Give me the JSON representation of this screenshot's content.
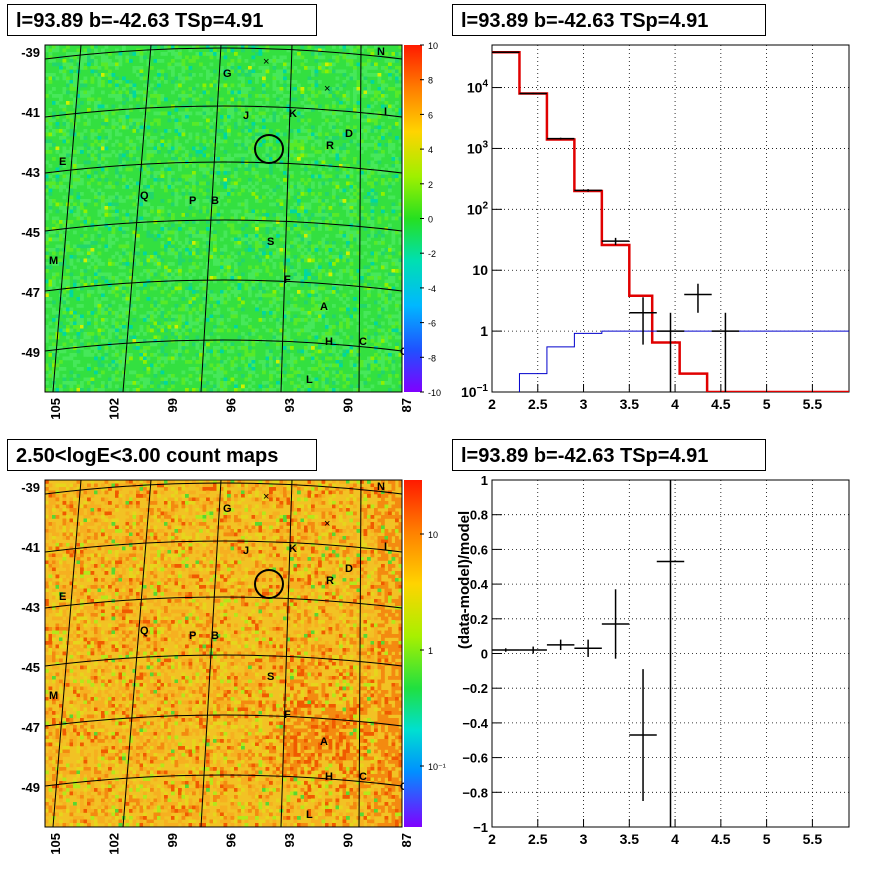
{
  "panels": {
    "tl_title": "l=93.89 b=-42.63 TSp=4.91",
    "tr_title": "l=93.89 b=-42.63 TSp=4.91",
    "bl_title": "2.50<logE<3.00 count maps",
    "br_title": "l=93.89 b=-42.63 TSp=4.91"
  },
  "colors": {
    "red": "#e00000",
    "blue": "#0000cc",
    "black": "#000000"
  },
  "chart_data": [
    {
      "type": "heatmap",
      "title": "l=93.89 b=-42.63 TSp=4.91",
      "colormap": "rainbow-green",
      "x_ticks": [
        "105",
        "102",
        "99",
        "96",
        "93",
        "90",
        "87"
      ],
      "y_ticks": [
        "-39",
        "-41",
        "-43",
        "-45",
        "-47",
        "-49"
      ],
      "colorbar": {
        "ticks": [
          "10",
          "8",
          "6",
          "4",
          "2",
          "0",
          "-2",
          "-4",
          "-6",
          "-8",
          "-10"
        ],
        "range": [
          -10,
          10
        ]
      },
      "source_labels": [
        "G",
        "N",
        "J",
        "K",
        "I",
        "D",
        "R",
        "E",
        "Q",
        "P",
        "B",
        "S",
        "M",
        "F",
        "A",
        "H",
        "C",
        "O",
        "L"
      ]
    },
    {
      "type": "line",
      "title": "l=93.89 b=-42.63 TSp=4.91",
      "xlim": [
        2,
        5.9
      ],
      "ylim": [
        0.1,
        50000
      ],
      "ylog": true,
      "grid": true,
      "x_ticks": [
        "2",
        "2.5",
        "3",
        "3.5",
        "4",
        "4.5",
        "5",
        "5.5"
      ],
      "y_ticks": [
        "10^-1",
        "1",
        "10",
        "10^2",
        "10^3",
        "10^4"
      ],
      "series": [
        {
          "style": "red-step",
          "edges": [
            2.0,
            2.3,
            2.6,
            2.9,
            3.2,
            3.5,
            3.75,
            4.05,
            4.35,
            5.9
          ],
          "values": [
            38000,
            8000,
            1400,
            200,
            26,
            3.8,
            0.65,
            0.2,
            0.1
          ]
        },
        {
          "style": "blue-step",
          "edges": [
            2.0,
            2.3,
            2.6,
            2.9,
            3.2,
            3.5,
            3.75,
            4.05,
            4.35,
            5.9
          ],
          "values": [
            0.06,
            0.2,
            0.55,
            0.92,
            1.0,
            1.0,
            1.0,
            1.0,
            1.0
          ]
        },
        {
          "style": "black-errorbars",
          "points": [
            {
              "x": 2.15,
              "xerr": 0.15,
              "y": 38000,
              "ylo": 37000,
              "yhi": 39000
            },
            {
              "x": 2.45,
              "xerr": 0.15,
              "y": 8000,
              "ylo": 7800,
              "yhi": 8200
            },
            {
              "x": 2.75,
              "xerr": 0.15,
              "y": 1450,
              "ylo": 1400,
              "yhi": 1500
            },
            {
              "x": 3.05,
              "xerr": 0.15,
              "y": 205,
              "ylo": 195,
              "yhi": 215
            },
            {
              "x": 3.35,
              "xerr": 0.15,
              "y": 30,
              "ylo": 26,
              "yhi": 34
            },
            {
              "x": 3.65,
              "xerr": 0.15,
              "y": 2.0,
              "ylo": 0.6,
              "yhi": 3.6
            },
            {
              "x": 3.95,
              "xerr": 0.15,
              "y": 1.0,
              "ylo": 0.1,
              "yhi": 2.0
            },
            {
              "x": 4.25,
              "xerr": 0.15,
              "y": 4.0,
              "ylo": 2.0,
              "yhi": 6.0
            },
            {
              "x": 4.55,
              "xerr": 0.15,
              "y": 1.0,
              "ylo": 0.1,
              "yhi": 2.0
            }
          ]
        }
      ]
    },
    {
      "type": "heatmap",
      "title": "2.50<logE<3.00 count maps",
      "colormap": "rainbow-orange",
      "x_ticks": [
        "105",
        "102",
        "99",
        "96",
        "93",
        "90",
        "87"
      ],
      "y_ticks": [
        "-39",
        "-41",
        "-43",
        "-45",
        "-47",
        "-49"
      ],
      "colorbar": {
        "ticks": [
          "10",
          "1",
          "10^-1"
        ],
        "log": true
      },
      "source_labels": [
        "G",
        "N",
        "J",
        "K",
        "I",
        "D",
        "R",
        "E",
        "Q",
        "P",
        "B",
        "S",
        "M",
        "F",
        "A",
        "H",
        "C",
        "O",
        "L"
      ]
    },
    {
      "type": "scatter",
      "title": "l=93.89 b=-42.63 TSp=4.91",
      "ylabel": "(data-model)/model",
      "xlim": [
        2,
        5.9
      ],
      "ylim": [
        -1,
        1
      ],
      "grid": true,
      "x_ticks": [
        "2",
        "2.5",
        "3",
        "3.5",
        "4",
        "4.5",
        "5",
        "5.5"
      ],
      "y_ticks": [
        "1",
        "0.8",
        "0.6",
        "0.4",
        "0.2",
        "0",
        "-0.2",
        "-0.4",
        "-0.6",
        "-0.8",
        "-1"
      ],
      "points": [
        {
          "x": 2.15,
          "xerr": 0.15,
          "y": 0.02,
          "yerr": 0.01
        },
        {
          "x": 2.45,
          "xerr": 0.15,
          "y": 0.02,
          "yerr": 0.02
        },
        {
          "x": 2.75,
          "xerr": 0.15,
          "y": 0.05,
          "yerr": 0.03
        },
        {
          "x": 3.05,
          "xerr": 0.15,
          "y": 0.03,
          "yerr": 0.05
        },
        {
          "x": 3.35,
          "xerr": 0.15,
          "y": 0.17,
          "yerr": 0.2
        },
        {
          "x": 3.65,
          "xerr": 0.15,
          "y": -0.47,
          "yerr": 0.38
        },
        {
          "x": 3.95,
          "xerr": 0.15,
          "y": 0.53,
          "yerr": 2.0
        }
      ]
    }
  ]
}
